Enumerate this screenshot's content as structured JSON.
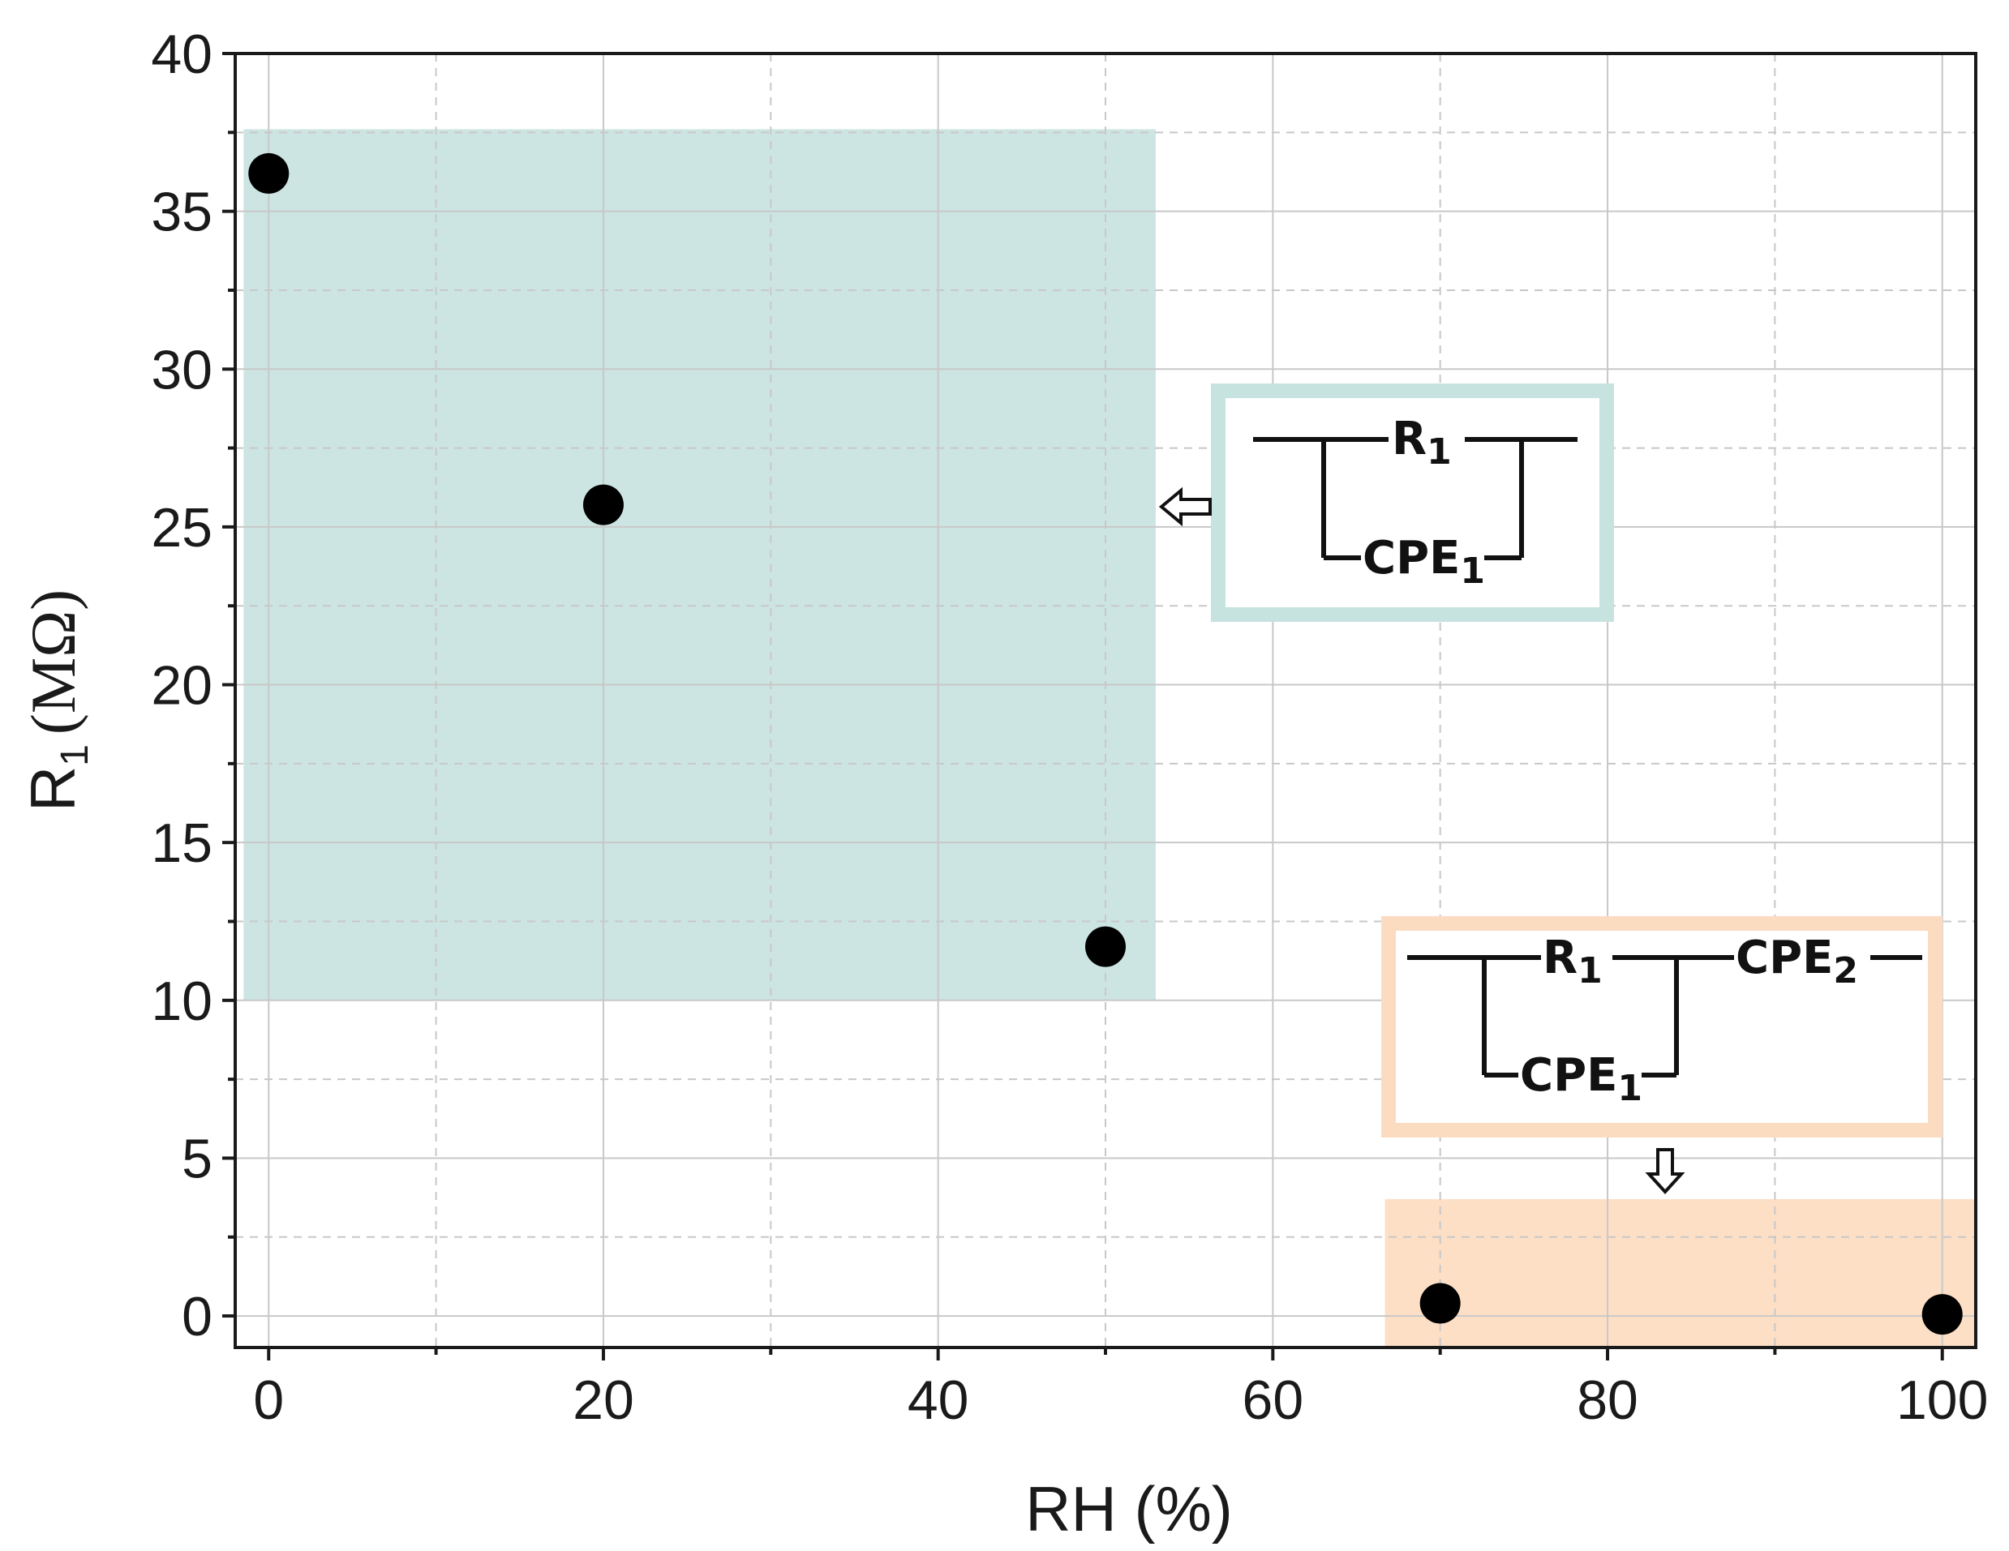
{
  "chart_data": {
    "type": "scatter",
    "xlabel": "RH (%)",
    "ylabel_main": "R",
    "ylabel_sub": "1",
    "ylabel_unit": "(MΩ)",
    "xlim": [
      -2,
      102
    ],
    "ylim": [
      -1,
      40
    ],
    "xticks": [
      0,
      20,
      40,
      60,
      80,
      100
    ],
    "xticks_minor": [
      10,
      30,
      50,
      70,
      90
    ],
    "yticks": [
      0,
      5,
      10,
      15,
      20,
      25,
      30,
      35,
      40
    ],
    "yticks_minor": [
      2.5,
      7.5,
      12.5,
      17.5,
      22.5,
      27.5,
      32.5,
      37.5
    ],
    "grid": true,
    "series": [
      {
        "x": [
          0,
          20,
          50,
          70,
          100
        ],
        "y": [
          36.2,
          25.7,
          11.7,
          0.4,
          0.05
        ]
      }
    ],
    "regions": [
      {
        "x": [
          -1.5,
          53
        ],
        "y": [
          10,
          37.6
        ],
        "color": "#cce5e2"
      },
      {
        "x": [
          66.7,
          102
        ],
        "y": [
          -1,
          3.7
        ],
        "color": "#fddfc6"
      }
    ],
    "insets": [
      {
        "border_color": "#c6e3df",
        "label_r": "R",
        "label_r_sub": "1",
        "label_cpe1": "CPE",
        "label_cpe1_sub": "1",
        "arrow": "left"
      },
      {
        "border_color": "#fcdcc1",
        "label_r": "R",
        "label_r_sub": "1",
        "label_cpe1": "CPE",
        "label_cpe1_sub": "1",
        "label_cpe2": "CPE",
        "label_cpe2_sub": "2",
        "arrow": "down"
      }
    ],
    "colors": {
      "points": "#000000",
      "axes": "#1a1a1a",
      "grid": "#c8c8c8"
    }
  }
}
